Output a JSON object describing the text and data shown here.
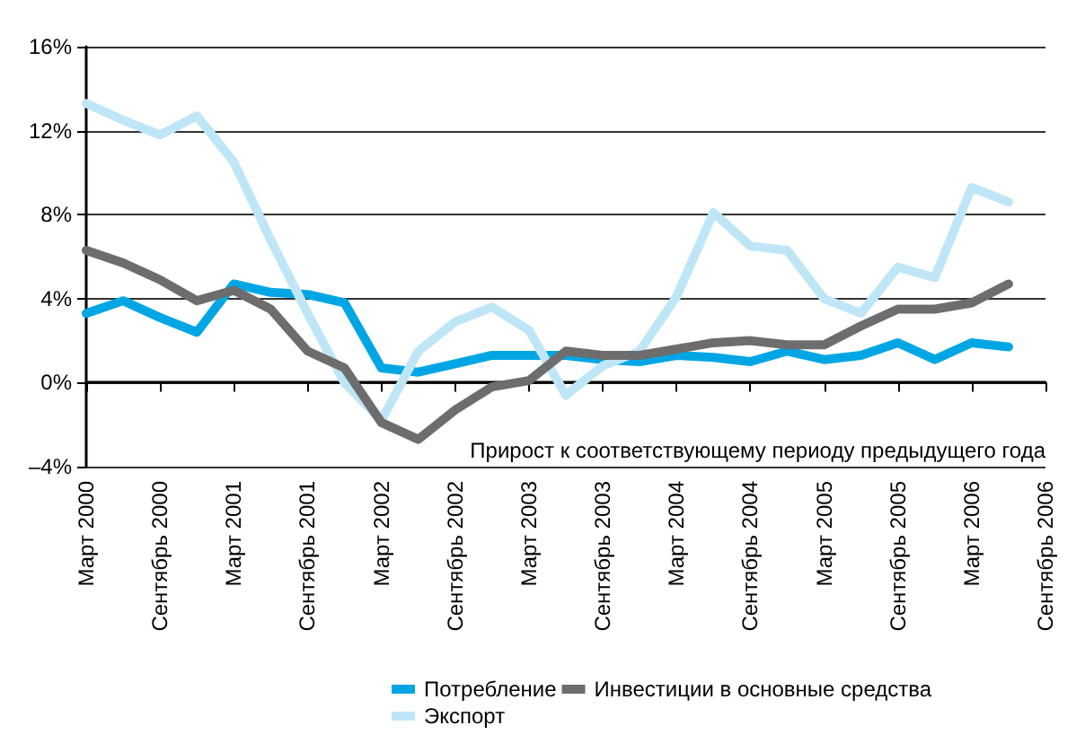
{
  "chart_data": {
    "type": "line",
    "categories": [
      "Март 2000",
      null,
      "Сентябрь 2000",
      null,
      "Март 2001",
      null,
      "Сентябрь 2001",
      null,
      "Март 2002",
      null,
      "Сентябрь 2002",
      null,
      "Март 2003",
      null,
      "Сентябрь 2003",
      null,
      "Март 2004",
      null,
      "Сентябрь 2004",
      null,
      "Март 2005",
      null,
      "Сентябрь 2005",
      null,
      "Март 2006",
      null,
      "Сентябрь 2006"
    ],
    "series": [
      {
        "name": "Потребление",
        "color": "#00a6e4",
        "values": [
          3.3,
          3.9,
          3.1,
          2.4,
          4.7,
          4.3,
          4.2,
          3.8,
          0.7,
          0.5,
          0.9,
          1.3,
          1.3,
          1.3,
          1.1,
          1.0,
          1.3,
          1.2,
          1.0,
          1.5,
          1.1,
          1.3,
          1.9,
          1.1,
          1.9,
          1.7,
          null
        ]
      },
      {
        "name": "Экспорт",
        "color": "#bfe6f7",
        "values": [
          13.3,
          12.5,
          11.8,
          12.7,
          10.5,
          6.8,
          3.3,
          0.0,
          -1.8,
          1.5,
          2.9,
          3.6,
          2.5,
          -0.6,
          0.8,
          1.5,
          4.1,
          8.1,
          6.5,
          6.3,
          4.0,
          3.3,
          5.5,
          5.0,
          9.3,
          8.6,
          null
        ]
      },
      {
        "name": "Инвестиции в основные средства",
        "color": "#6d6d6d",
        "values": [
          6.3,
          5.7,
          4.9,
          3.9,
          4.4,
          3.5,
          1.5,
          0.7,
          -1.9,
          -2.7,
          -1.3,
          -0.2,
          0.1,
          1.5,
          1.3,
          1.3,
          1.6,
          1.9,
          2.0,
          1.8,
          1.8,
          2.7,
          3.5,
          3.5,
          3.8,
          4.7,
          null
        ]
      }
    ],
    "ylim": [
      -4,
      16
    ],
    "yticks": [
      {
        "value": -4,
        "label": "–4%"
      },
      {
        "value": 0,
        "label": "0%"
      },
      {
        "value": 4,
        "label": "4%"
      },
      {
        "value": 8,
        "label": "8%"
      },
      {
        "value": 12,
        "label": "12%"
      },
      {
        "value": 16,
        "label": "16%"
      }
    ],
    "grid": "y",
    "legend": "bottom",
    "marker": "none",
    "line_style": "solid",
    "annotations": [
      "Прирост к соответствующему периоду предыдущего года"
    ]
  }
}
